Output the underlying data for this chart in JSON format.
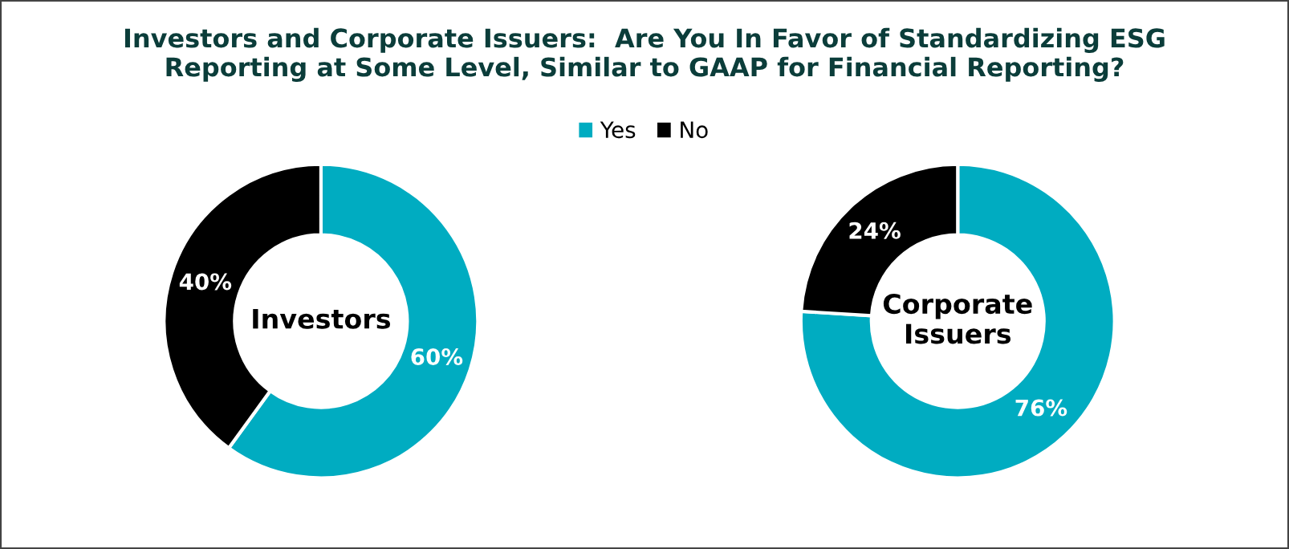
{
  "chart_data": [
    {
      "type": "donut",
      "title": "Investors and Corporate Issuers:  Are You In Favor of Standardizing ESG\nReporting at Some Level, Similar to GAAP for Financial Reporting?",
      "categories": [
        "Yes",
        "No"
      ],
      "values": [
        60,
        40
      ],
      "colors": [
        "#00acc1",
        "#000000"
      ],
      "value_labels": [
        "60%",
        "40%"
      ],
      "legend": "top",
      "annotations": [
        "Investors"
      ]
    },
    {
      "type": "donut",
      "categories": [
        null,
        null
      ],
      "values": [
        76,
        24
      ],
      "colors": [
        "#00acc1",
        "#000000"
      ],
      "value_labels": [
        "76%",
        "24%"
      ],
      "annotations": [
        "Corporate\nIssuers"
      ]
    }
  ]
}
